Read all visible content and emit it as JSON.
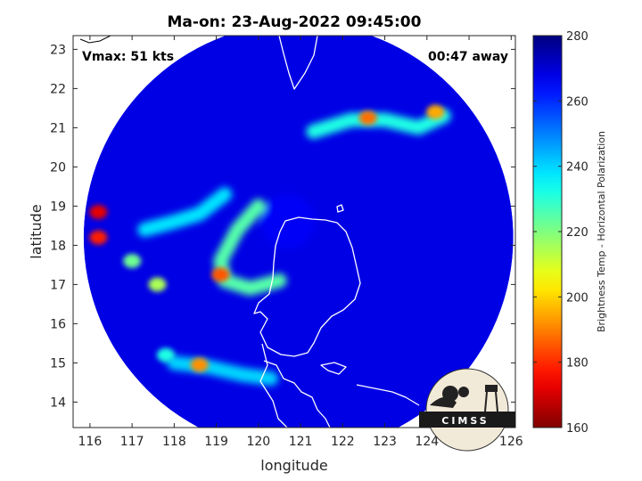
{
  "chart_data": {
    "type": "heatmap",
    "title": "Ma-on: 23-Aug-2022 09:45:00",
    "xlabel": "longitude",
    "ylabel": "latitude",
    "xlim": [
      115.6,
      126.1
    ],
    "ylim": [
      13.35,
      23.35
    ],
    "x_ticks": [
      "116",
      "117",
      "118",
      "119",
      "120",
      "121",
      "122",
      "123",
      "124",
      "125",
      "126"
    ],
    "y_ticks": [
      "14",
      "15",
      "16",
      "17",
      "18",
      "19",
      "20",
      "21",
      "22",
      "23"
    ],
    "annotations": {
      "vmax": "Vmax: 51 kts",
      "away": "00:47 away"
    },
    "colorbar": {
      "label": "Brightness Temp - Horizontal Polarization",
      "range": [
        160,
        280
      ],
      "ticks": [
        "160",
        "180",
        "200",
        "220",
        "240",
        "260",
        "280"
      ],
      "colormap": "jet"
    },
    "swath_center": [
      120.95,
      18.2
    ],
    "swath_radius_deg": 5.1,
    "background_value": 268,
    "features": [
      {
        "type": "eye",
        "lon": 120.7,
        "lat": 18.6,
        "value": 266
      },
      {
        "type": "rainband",
        "path": [
          [
            120.0,
            19.0
          ],
          [
            119.5,
            18.4
          ],
          [
            119.1,
            17.6
          ],
          [
            119.2,
            17.1
          ],
          [
            119.8,
            16.9
          ],
          [
            120.5,
            17.1
          ]
        ],
        "value": 225
      },
      {
        "type": "rainband",
        "path": [
          [
            121.3,
            20.9
          ],
          [
            122.2,
            21.2
          ],
          [
            123.0,
            21.2
          ],
          [
            123.8,
            21.0
          ],
          [
            124.4,
            21.3
          ]
        ],
        "value": 232
      },
      {
        "type": "rainband",
        "path": [
          [
            117.3,
            18.4
          ],
          [
            118.0,
            18.6
          ],
          [
            118.6,
            18.8
          ],
          [
            119.2,
            19.3
          ]
        ],
        "value": 238
      },
      {
        "type": "rainband",
        "path": [
          [
            118.0,
            15.0
          ],
          [
            118.8,
            14.9
          ],
          [
            119.6,
            14.7
          ],
          [
            120.3,
            14.6
          ]
        ],
        "value": 240
      },
      {
        "type": "cell",
        "lon": 116.2,
        "lat": 18.85,
        "value": 172
      },
      {
        "type": "cell",
        "lon": 116.2,
        "lat": 18.2,
        "value": 178
      },
      {
        "type": "cell",
        "lon": 119.1,
        "lat": 17.25,
        "value": 185
      },
      {
        "type": "cell",
        "lon": 118.6,
        "lat": 14.95,
        "value": 192
      },
      {
        "type": "cell",
        "lon": 122.6,
        "lat": 21.25,
        "value": 188
      },
      {
        "type": "cell",
        "lon": 124.2,
        "lat": 21.4,
        "value": 195
      },
      {
        "type": "cell",
        "lon": 117.6,
        "lat": 17.0,
        "value": 215
      },
      {
        "type": "cell",
        "lon": 117.0,
        "lat": 17.6,
        "value": 222
      },
      {
        "type": "cell",
        "lon": 117.8,
        "lat": 15.2,
        "value": 232
      }
    ],
    "logo": "CIMSS"
  }
}
